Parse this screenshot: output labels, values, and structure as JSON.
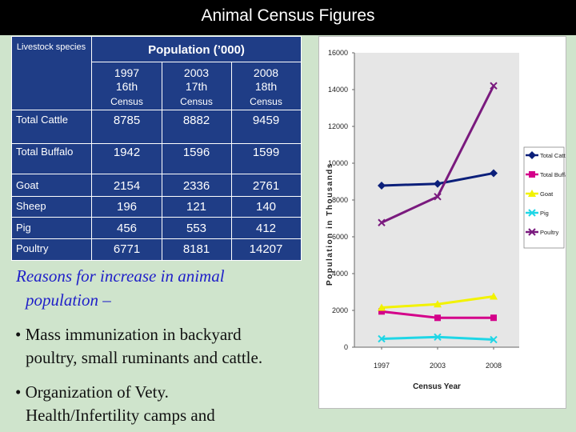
{
  "title": "Animal Census Figures",
  "table": {
    "species_header": "Livestock species",
    "population_header": "Population (’000)",
    "years": [
      {
        "year": "1997",
        "census_no": "16th",
        "label": "Census"
      },
      {
        "year": "2003",
        "census_no": "17th",
        "label": "Census"
      },
      {
        "year": "2008",
        "census_no": "18th",
        "label": "Census"
      }
    ],
    "rows": [
      {
        "species": "Total Cattle",
        "values": [
          "8785",
          "8882",
          "9459"
        ]
      },
      {
        "species": "Total Buffalo",
        "values": [
          "1942",
          "1596",
          "1599"
        ]
      },
      {
        "species": "Goat",
        "values": [
          "2154",
          "2336",
          "2761"
        ]
      },
      {
        "species": "Sheep",
        "values": [
          "196",
          "121",
          "140"
        ]
      },
      {
        "species": "Pig",
        "values": [
          "456",
          "553",
          "412"
        ]
      },
      {
        "species": "Poultry",
        "values": [
          "6771",
          "8181",
          "14207"
        ]
      }
    ]
  },
  "reasons": {
    "title_line1": "Reasons for increase in animal",
    "title_line2": "population –",
    "bullets": [
      {
        "line1": "• Mass immunization in backyard",
        "line2": "poultry, small ruminants and cattle."
      },
      {
        "line1": "• Organization of Vety.",
        "line2": "Health/Infertility camps and"
      }
    ]
  },
  "chart_data": {
    "type": "line",
    "x": [
      "1997",
      "2003",
      "2008"
    ],
    "ylabel": "Population in Thousands",
    "xlabel": "Census Year",
    "ylim": [
      0,
      16000
    ],
    "yticks": [
      0,
      2000,
      4000,
      6000,
      8000,
      10000,
      12000,
      14000,
      16000
    ],
    "legend_position": "right",
    "series": [
      {
        "name": "Total Cattle",
        "values": [
          8785,
          8882,
          9459
        ],
        "color": "#0b1f7a",
        "marker": "diamond"
      },
      {
        "name": "Total Buffalo",
        "values": [
          1942,
          1596,
          1599
        ],
        "color": "#d4008a",
        "marker": "square"
      },
      {
        "name": "Goat",
        "values": [
          2154,
          2336,
          2761
        ],
        "color": "#f2f200",
        "marker": "triangle"
      },
      {
        "name": "Pig",
        "values": [
          456,
          553,
          412
        ],
        "color": "#1fd6e6",
        "marker": "x"
      },
      {
        "name": "Poultry",
        "values": [
          6771,
          8181,
          14207
        ],
        "color": "#7a1a7e",
        "marker": "x"
      }
    ]
  }
}
